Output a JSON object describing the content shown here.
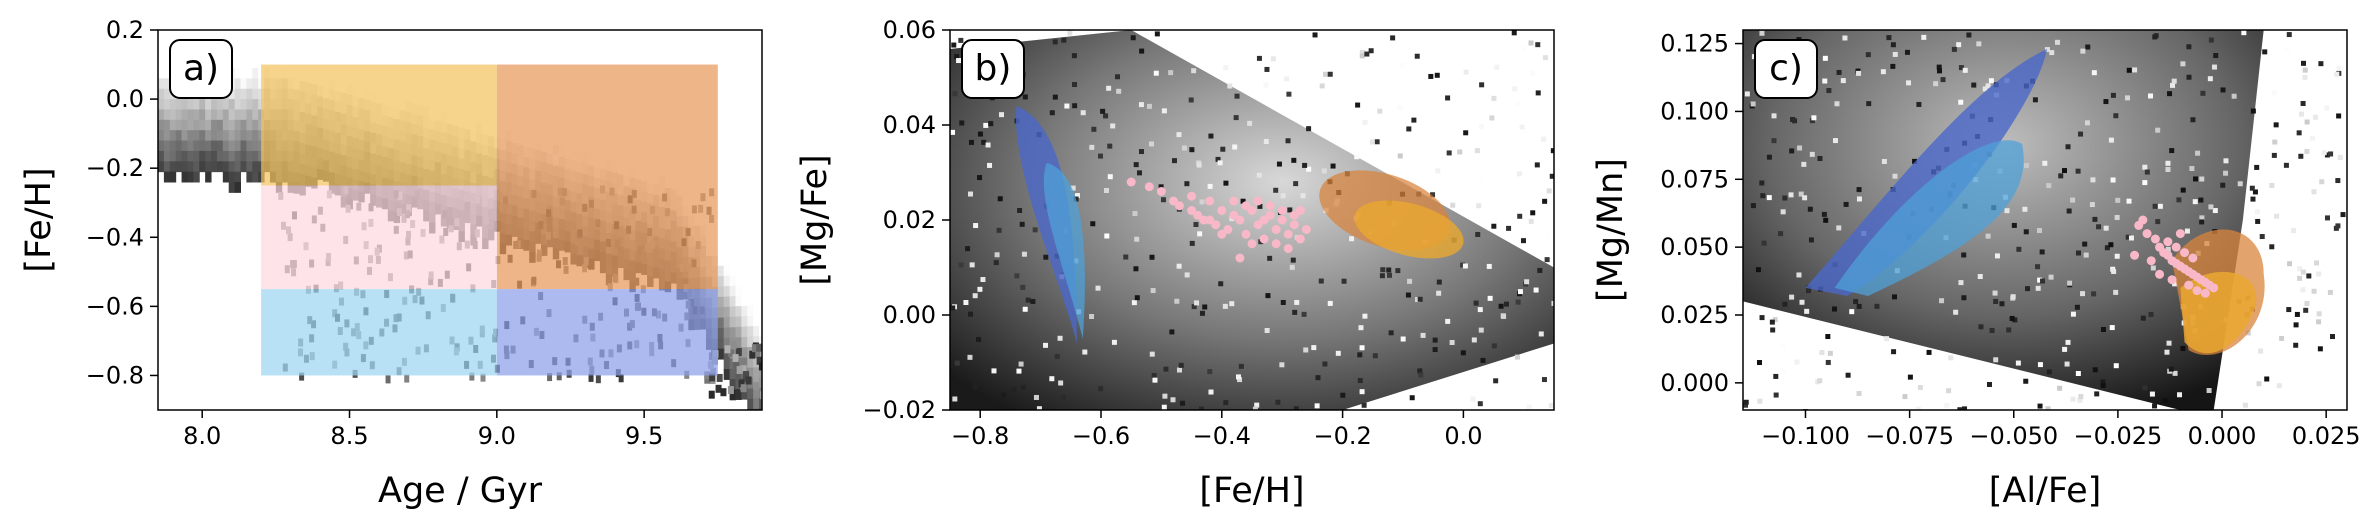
{
  "chart_data": [
    {
      "type": "heatmap",
      "panel_label": "a)",
      "xlabel": "Age / Gyr",
      "ylabel": "[Fe/H]",
      "xlim": [
        7.85,
        9.9
      ],
      "ylim": [
        -0.9,
        0.2
      ],
      "xticks": [
        8.0,
        8.5,
        9.0,
        9.5
      ],
      "xtick_labels": [
        "8.0",
        "8.5",
        "9.0",
        "9.5"
      ],
      "yticks": [
        0.2,
        0.0,
        -0.2,
        -0.4,
        -0.6,
        -0.8
      ],
      "ytick_labels": [
        "0.2",
        "0.0",
        "−0.2",
        "−0.4",
        "−0.6",
        "−0.8"
      ],
      "grid": false,
      "selection_boxes": [
        {
          "age": [
            8.2,
            9.0
          ],
          "feh": [
            -0.25,
            0.1
          ],
          "color": "#f2c45e"
        },
        {
          "age": [
            9.0,
            9.75
          ],
          "feh": [
            -0.55,
            0.1
          ],
          "color": "#e8985c"
        },
        {
          "age": [
            8.2,
            9.0
          ],
          "feh": [
            -0.55,
            -0.25
          ],
          "color": "#fddadf"
        },
        {
          "age": [
            8.2,
            9.0
          ],
          "feh": [
            -0.8,
            -0.55
          ],
          "color": "#9ed6f2"
        },
        {
          "age": [
            9.0,
            9.75
          ],
          "feh": [
            -0.8,
            -0.55
          ],
          "color": "#8ea0ea"
        }
      ]
    },
    {
      "type": "heatmap",
      "panel_label": "b)",
      "xlabel": "[Fe/H]",
      "ylabel": "[Mg/Fe]",
      "xlim": [
        -0.85,
        0.15
      ],
      "ylim": [
        -0.02,
        0.06
      ],
      "xticks": [
        -0.8,
        -0.6,
        -0.4,
        -0.2,
        0.0
      ],
      "xtick_labels": [
        "−0.8",
        "−0.6",
        "−0.4",
        "−0.2",
        "0.0"
      ],
      "yticks": [
        -0.02,
        0.0,
        0.02,
        0.04,
        0.06
      ],
      "ytick_labels": [
        "−0.02",
        "0.00",
        "0.02",
        "0.04",
        "0.06"
      ],
      "grid": false,
      "pink_scatter_x": [
        -0.55,
        -0.52,
        -0.5,
        -0.48,
        -0.47,
        -0.45,
        -0.44,
        -0.43,
        -0.42,
        -0.41,
        -0.4,
        -0.39,
        -0.38,
        -0.37,
        -0.36,
        -0.35,
        -0.34,
        -0.33,
        -0.32,
        -0.31,
        -0.3,
        -0.29,
        -0.28,
        -0.27,
        -0.26,
        -0.45,
        -0.42,
        -0.38,
        -0.36,
        -0.34,
        -0.32,
        -0.3,
        -0.28,
        -0.4,
        -0.35,
        -0.31,
        -0.27,
        -0.29,
        -0.33,
        -0.37
      ],
      "pink_scatter_y": [
        0.028,
        0.027,
        0.026,
        0.024,
        0.023,
        0.022,
        0.021,
        0.02,
        0.024,
        0.019,
        0.022,
        0.018,
        0.021,
        0.02,
        0.017,
        0.022,
        0.019,
        0.016,
        0.021,
        0.018,
        0.02,
        0.017,
        0.019,
        0.016,
        0.018,
        0.025,
        0.02,
        0.024,
        0.023,
        0.024,
        0.023,
        0.022,
        0.021,
        0.017,
        0.015,
        0.015,
        0.022,
        0.014,
        0.02,
        0.012
      ]
    },
    {
      "type": "heatmap",
      "panel_label": "c)",
      "xlabel": "[Al/Fe]",
      "ylabel": "[Mg/Mn]",
      "xlim": [
        -0.115,
        0.03
      ],
      "ylim": [
        -0.01,
        0.13
      ],
      "xticks": [
        -0.1,
        -0.075,
        -0.05,
        -0.025,
        0.0,
        0.025
      ],
      "xtick_labels": [
        "−0.100",
        "−0.075",
        "−0.050",
        "−0.025",
        "0.000",
        "0.025"
      ],
      "yticks": [
        0.0,
        0.025,
        0.05,
        0.075,
        0.1,
        0.125
      ],
      "ytick_labels": [
        "0.000",
        "0.025",
        "0.050",
        "0.075",
        "0.100",
        "0.125"
      ],
      "grid": false,
      "pink_scatter_x": [
        -0.02,
        -0.018,
        -0.016,
        -0.015,
        -0.014,
        -0.013,
        -0.012,
        -0.011,
        -0.01,
        -0.009,
        -0.008,
        -0.007,
        -0.006,
        -0.005,
        -0.004,
        -0.003,
        -0.017,
        -0.013,
        -0.011,
        -0.009,
        -0.007,
        -0.015,
        -0.012,
        -0.008,
        -0.006,
        -0.004,
        -0.019,
        -0.021,
        -0.01,
        -0.002
      ],
      "pink_scatter_y": [
        0.058,
        0.055,
        0.053,
        0.05,
        0.048,
        0.047,
        0.045,
        0.044,
        0.043,
        0.042,
        0.041,
        0.04,
        0.039,
        0.038,
        0.037,
        0.036,
        0.045,
        0.052,
        0.05,
        0.048,
        0.046,
        0.04,
        0.038,
        0.036,
        0.034,
        0.033,
        0.06,
        0.047,
        0.055,
        0.035
      ]
    }
  ],
  "colors": {
    "pink": "#f8b8c8",
    "blue_dark": "#4a68c8",
    "blue_light": "#4fa0d8",
    "orange_dark": "#d8843c",
    "orange_light": "#eaa830"
  }
}
